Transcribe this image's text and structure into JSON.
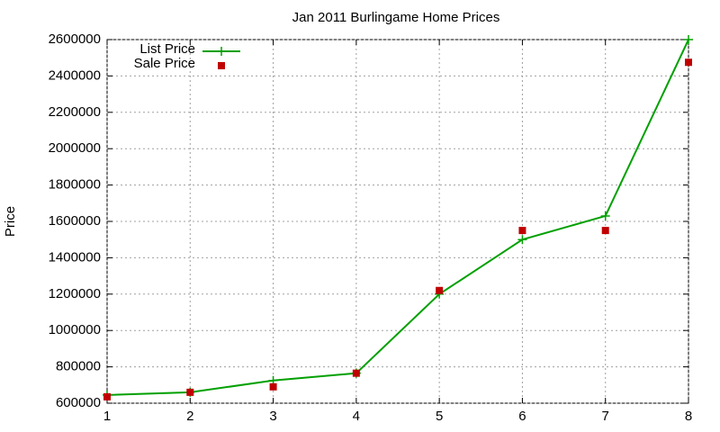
{
  "chart_data": {
    "type": "line",
    "title": "Jan 2011 Burlingame Home Prices",
    "y_label": "Price",
    "x": [
      1,
      2,
      3,
      4,
      5,
      6,
      7,
      8
    ],
    "xlim": [
      1,
      8
    ],
    "xticks": [
      1,
      2,
      3,
      4,
      5,
      6,
      7,
      8
    ],
    "ylim": [
      600000,
      2600000
    ],
    "yticks": [
      600000,
      800000,
      1000000,
      1200000,
      1400000,
      1600000,
      1800000,
      2000000,
      2200000,
      2400000,
      2600000
    ],
    "grid": true,
    "legend": "top-left",
    "series": [
      {
        "name": "List Price",
        "color": "#00a000",
        "style": "linespoints",
        "values": [
          645000,
          660000,
          725000,
          765000,
          1200000,
          1500000,
          1630000,
          2600000
        ]
      },
      {
        "name": "Sale Price",
        "color": "#c00000",
        "style": "points",
        "values": [
          635000,
          660000,
          690000,
          765000,
          1220000,
          1550000,
          1550000,
          2475000
        ]
      }
    ]
  }
}
